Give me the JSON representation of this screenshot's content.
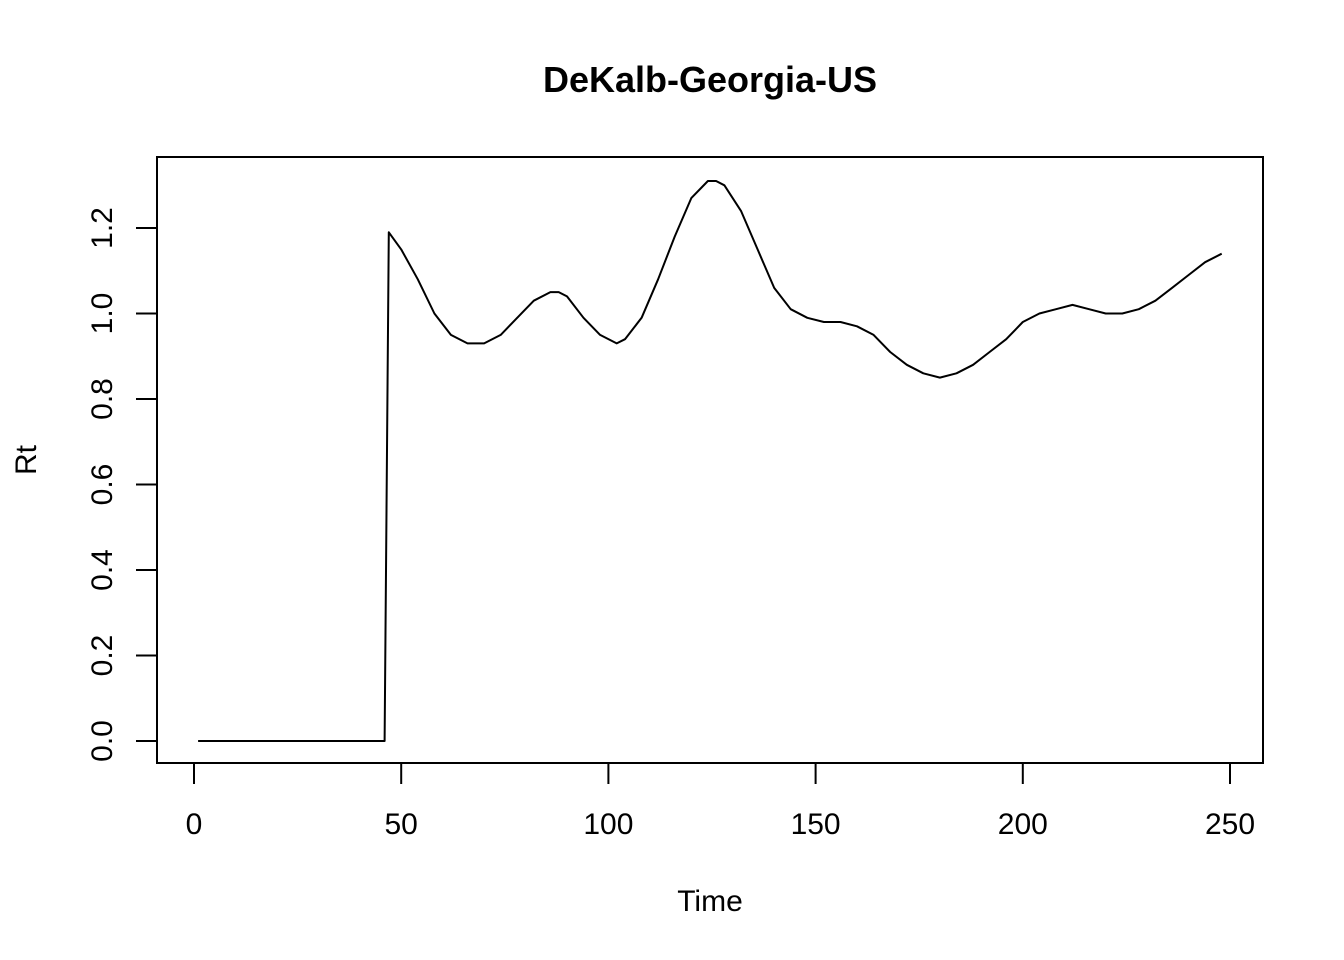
{
  "chart_data": {
    "type": "line",
    "title": "DeKalb-Georgia-US",
    "xlabel": "Time",
    "ylabel": "Rt",
    "xlim": [
      1,
      248
    ],
    "ylim": [
      0,
      1.3
    ],
    "x_ticks": [
      0,
      50,
      100,
      150,
      200,
      250
    ],
    "y_ticks": [
      0.0,
      0.2,
      0.4,
      0.6,
      0.8,
      1.0,
      1.2
    ],
    "x_tick_labels": [
      "0",
      "50",
      "100",
      "150",
      "200",
      "250"
    ],
    "y_tick_labels": [
      "0.0",
      "0.2",
      "0.4",
      "0.6",
      "0.8",
      "1.0",
      "1.2"
    ],
    "grid": false,
    "legend": null,
    "line_color": "#000000",
    "series": [
      {
        "x": [
          1,
          10,
          20,
          30,
          40,
          46,
          47,
          50,
          54,
          58,
          62,
          66,
          70,
          74,
          78,
          82,
          86,
          88,
          90,
          94,
          98,
          102,
          104,
          108,
          112,
          116,
          120,
          124,
          126,
          128,
          132,
          136,
          140,
          144,
          148,
          152,
          156,
          160,
          164,
          168,
          172,
          176,
          180,
          184,
          188,
          192,
          196,
          200,
          204,
          208,
          212,
          216,
          220,
          224,
          228,
          232,
          236,
          240,
          244,
          248
        ],
        "y": [
          0.0,
          0.0,
          0.0,
          0.0,
          0.0,
          0.0,
          1.19,
          1.15,
          1.08,
          1.0,
          0.95,
          0.93,
          0.93,
          0.95,
          0.99,
          1.03,
          1.05,
          1.05,
          1.04,
          0.99,
          0.95,
          0.93,
          0.94,
          0.99,
          1.08,
          1.18,
          1.27,
          1.31,
          1.31,
          1.3,
          1.24,
          1.15,
          1.06,
          1.01,
          0.99,
          0.98,
          0.98,
          0.97,
          0.95,
          0.91,
          0.88,
          0.86,
          0.85,
          0.86,
          0.88,
          0.91,
          0.94,
          0.98,
          1.0,
          1.01,
          1.02,
          1.01,
          1.0,
          1.0,
          1.01,
          1.03,
          1.06,
          1.09,
          1.12,
          1.14
        ]
      }
    ]
  }
}
